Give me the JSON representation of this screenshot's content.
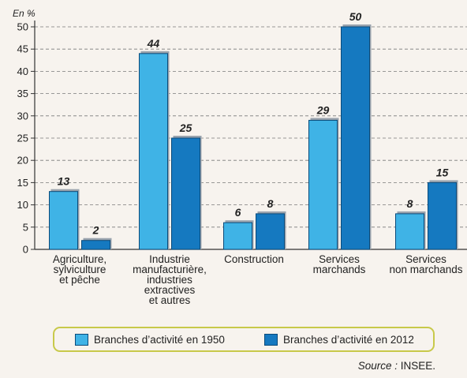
{
  "chart_data": {
    "type": "bar",
    "ylabel": "En %",
    "ylim": [
      0,
      50
    ],
    "yticks": [
      0,
      5,
      10,
      15,
      20,
      25,
      30,
      35,
      40,
      45,
      50
    ],
    "grid": true,
    "categories": [
      [
        "Agriculture,",
        "sylviculture",
        "et pêche"
      ],
      [
        "Industrie",
        "manufacturière,",
        "industries",
        "extractives",
        "et autres"
      ],
      [
        "Construction"
      ],
      [
        "Services",
        "marchands"
      ],
      [
        "Services",
        "non marchands"
      ]
    ],
    "series": [
      {
        "name": "Branches d’activité en 1950",
        "color": "#3fb3e6",
        "values": [
          13,
          44,
          6,
          29,
          8
        ]
      },
      {
        "name": "Branches d’activité en 2012",
        "color": "#1579c0",
        "values": [
          2,
          25,
          8,
          50,
          15
        ]
      }
    ],
    "legend_position": "bottom"
  },
  "source": {
    "label": "Source :",
    "value": "INSEE."
  }
}
